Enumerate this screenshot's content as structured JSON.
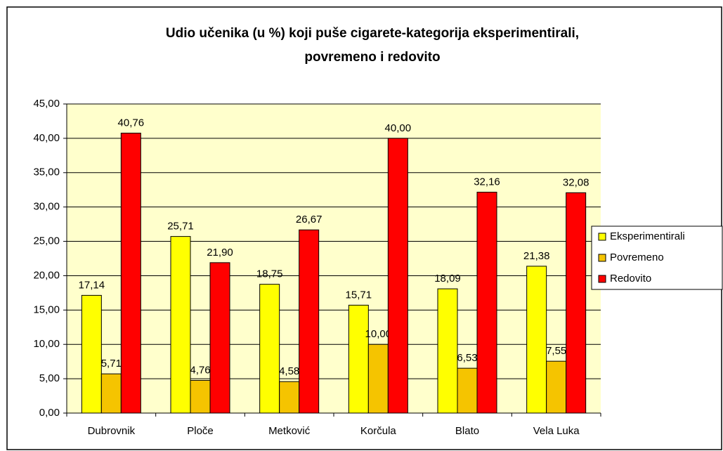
{
  "chart_data": {
    "type": "bar",
    "title": [
      "Udio učenika (u %) koji puše cigarete-kategorija eksperimentirali,",
      "povremeno i redovito"
    ],
    "categories": [
      "Dubrovnik",
      "Ploče",
      "Metković",
      "Korčula",
      "Blato",
      "Vela Luka"
    ],
    "series": [
      {
        "name": "Eksperimentirali",
        "color": "#ffff00",
        "values": [
          17.14,
          25.71,
          18.75,
          15.71,
          18.09,
          21.38
        ],
        "value_labels": [
          "17,14",
          "25,71",
          "18,75",
          "15,71",
          "18,09",
          "21,38"
        ]
      },
      {
        "name": "Povremeno",
        "color": "#f5c400",
        "values": [
          5.71,
          4.76,
          4.58,
          10.0,
          6.53,
          7.55
        ],
        "value_labels": [
          "5,71",
          "4,76",
          "4,58",
          "10,00",
          "6,53",
          "7,55"
        ]
      },
      {
        "name": "Redovito",
        "color": "#ff0000",
        "values": [
          40.76,
          21.9,
          26.67,
          40.0,
          32.16,
          32.08
        ],
        "value_labels": [
          "40,76",
          "21,90",
          "26,67",
          "40,00",
          "32,16",
          "32,08"
        ]
      }
    ],
    "ylim": [
      0,
      45
    ],
    "yticks": [
      {
        "value": 0,
        "label": "0,00"
      },
      {
        "value": 5,
        "label": "5,00"
      },
      {
        "value": 10,
        "label": "10,00"
      },
      {
        "value": 15,
        "label": "15,00"
      },
      {
        "value": 20,
        "label": "20,00"
      },
      {
        "value": 25,
        "label": "25,00"
      },
      {
        "value": 30,
        "label": "30,00"
      },
      {
        "value": 35,
        "label": "35,00"
      },
      {
        "value": 40,
        "label": "40,00"
      },
      {
        "value": 45,
        "label": "45,00"
      }
    ],
    "grid": true,
    "legend": "right",
    "plot_background": "#ffffcc"
  }
}
